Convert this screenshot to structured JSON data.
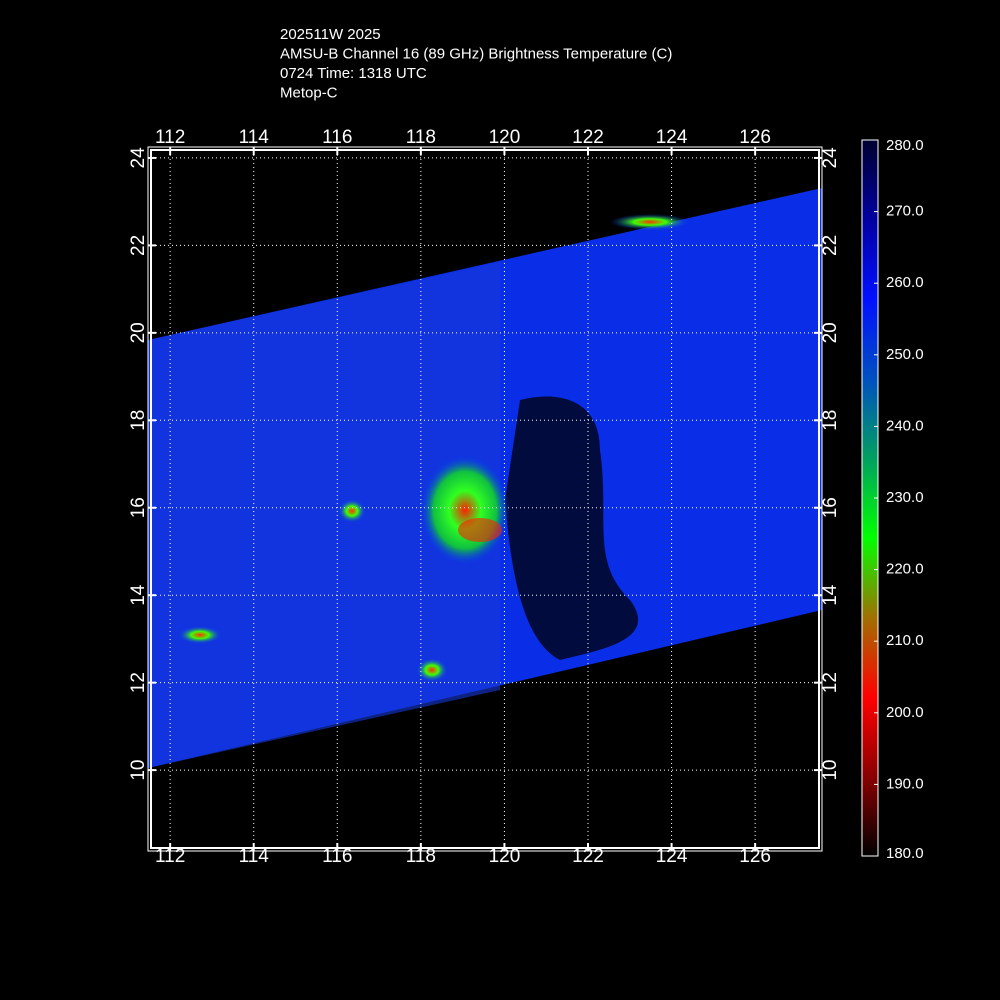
{
  "header": {
    "lines": [
      "202511W 2025",
      "AMSU-B Channel 16 (89 GHz) Brightness Temperature (C)",
      "0724 Time: 1318 UTC",
      "Metop-C"
    ]
  },
  "map": {
    "xlim": [
      111.47,
      127.6
    ],
    "ylim": [
      8.15,
      24.25
    ],
    "xticks": [
      112,
      114,
      116,
      118,
      120,
      122,
      124,
      126
    ],
    "yticks": [
      10,
      12,
      14,
      16,
      18,
      20,
      22,
      24
    ],
    "grid": true
  },
  "colorbar": {
    "range": [
      180,
      280
    ],
    "ticks": [
      {
        "value": 180,
        "label": "180.0"
      },
      {
        "value": 190,
        "label": "190.0"
      },
      {
        "value": 200,
        "label": "200.0"
      },
      {
        "value": 210,
        "label": "210.0"
      },
      {
        "value": 220,
        "label": "220.0"
      },
      {
        "value": 230,
        "label": "230.0"
      },
      {
        "value": 240,
        "label": "240.0"
      },
      {
        "value": 250,
        "label": "250.0"
      },
      {
        "value": 260,
        "label": "260.0"
      },
      {
        "value": 270,
        "label": "270.0"
      },
      {
        "value": 280,
        "label": "280.0"
      }
    ],
    "colors": [
      "#000000",
      "#8a0000",
      "#ff0000",
      "#a07000",
      "#00ff00",
      "#00a060",
      "#0050c0",
      "#0010ff",
      "#0000a0",
      "#000030"
    ]
  }
}
